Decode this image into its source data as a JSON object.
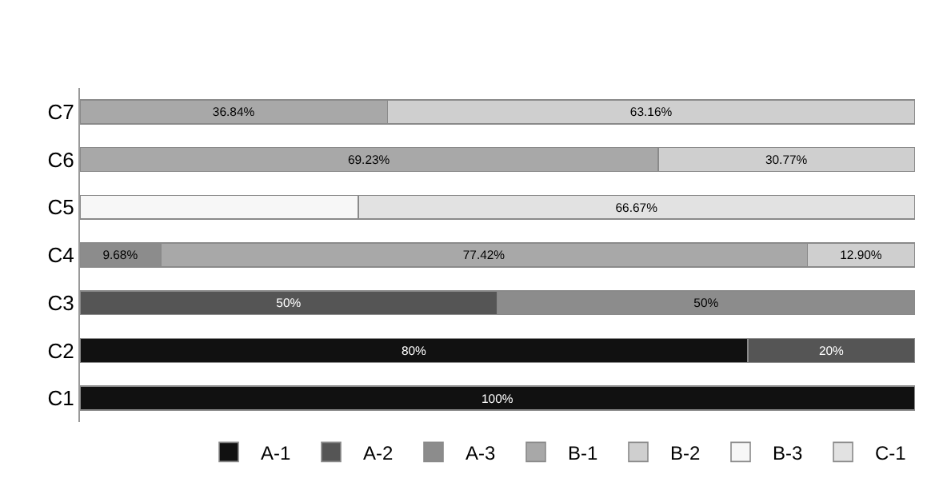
{
  "chart_data": {
    "type": "bar",
    "orientation": "horizontal",
    "stacked": true,
    "legend": "bottom right",
    "categories": [
      "C7",
      "C6",
      "C5",
      "C4",
      "C3",
      "C2",
      "C1"
    ],
    "series": [
      {
        "name": "A-1",
        "color": "#111111",
        "values": [
          null,
          null,
          null,
          null,
          null,
          80,
          100
        ],
        "value_labels": [
          null,
          null,
          null,
          null,
          null,
          "80%",
          "100%"
        ]
      },
      {
        "name": "A-2",
        "color": "#555555",
        "values": [
          null,
          null,
          null,
          null,
          50,
          20,
          null
        ],
        "value_labels": [
          null,
          null,
          null,
          null,
          "50%",
          "20%",
          null
        ]
      },
      {
        "name": "A-3",
        "color": "#8c8c8c",
        "values": [
          null,
          null,
          null,
          9.68,
          50,
          null,
          null
        ],
        "value_labels": [
          null,
          null,
          null,
          "9.68%",
          "50%",
          null,
          null
        ]
      },
      {
        "name": "B-1",
        "color": "#a8a8a8",
        "values": [
          36.84,
          69.23,
          null,
          77.42,
          null,
          null,
          null
        ],
        "value_labels": [
          "36.84%",
          "69.23%",
          null,
          "77.42%",
          null,
          null,
          null
        ]
      },
      {
        "name": "B-2",
        "color": "#cfcfcf",
        "values": [
          63.16,
          30.77,
          null,
          12.9,
          null,
          null,
          null
        ],
        "value_labels": [
          "63.16%",
          "30.77%",
          null,
          "12.90%",
          null,
          null,
          null
        ]
      },
      {
        "name": "B-3",
        "color": "#f7f7f7",
        "values": [
          null,
          null,
          33.33,
          null,
          null,
          null,
          null
        ],
        "value_labels": [
          null,
          null,
          null,
          null,
          null,
          null,
          null
        ]
      },
      {
        "name": "C-1",
        "color": "#e2e2e2",
        "values": [
          null,
          null,
          66.67,
          null,
          null,
          null,
          null
        ],
        "value_labels": [
          null,
          null,
          "66.67%",
          null,
          null,
          null,
          null
        ]
      }
    ]
  }
}
